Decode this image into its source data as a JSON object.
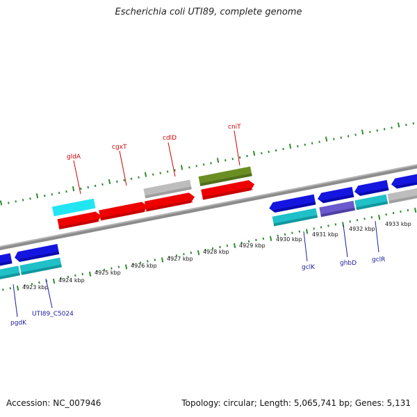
{
  "title": "Escherichia coli UTI89, complete genome",
  "footer": {
    "accession": "Accession: NC_007946",
    "summary": "Topology: circular; Length: 5,065,741 bp; Genes: 5,131"
  },
  "colors": {
    "red": "#ee0000",
    "cyan": "#22d8e8",
    "teal": "#20c0c8",
    "blue": "#1010e0",
    "slate": "#6a5acd",
    "olive": "#6b8e23",
    "grey": "#b8b8b8",
    "tick": "#2e8b2e"
  },
  "scale_labels": [
    "4923 kbp",
    "4924 kbp",
    "4925 kbp",
    "4926 kbp",
    "4927 kbp",
    "4928 kbp",
    "4929 kbp",
    "4930 kbp",
    "4931 kbp",
    "4932 kbp",
    "4933 kbp"
  ],
  "top_labels": [
    {
      "name": "gldA"
    },
    {
      "name": "cgxT"
    },
    {
      "name": "cdlD"
    },
    {
      "name": "cniT"
    }
  ],
  "bottom_labels": [
    {
      "name": "pgdK"
    },
    {
      "name": "UTI89_C5024"
    },
    {
      "name": "gclK"
    },
    {
      "name": "ghbD"
    },
    {
      "name": "gclR"
    }
  ]
}
